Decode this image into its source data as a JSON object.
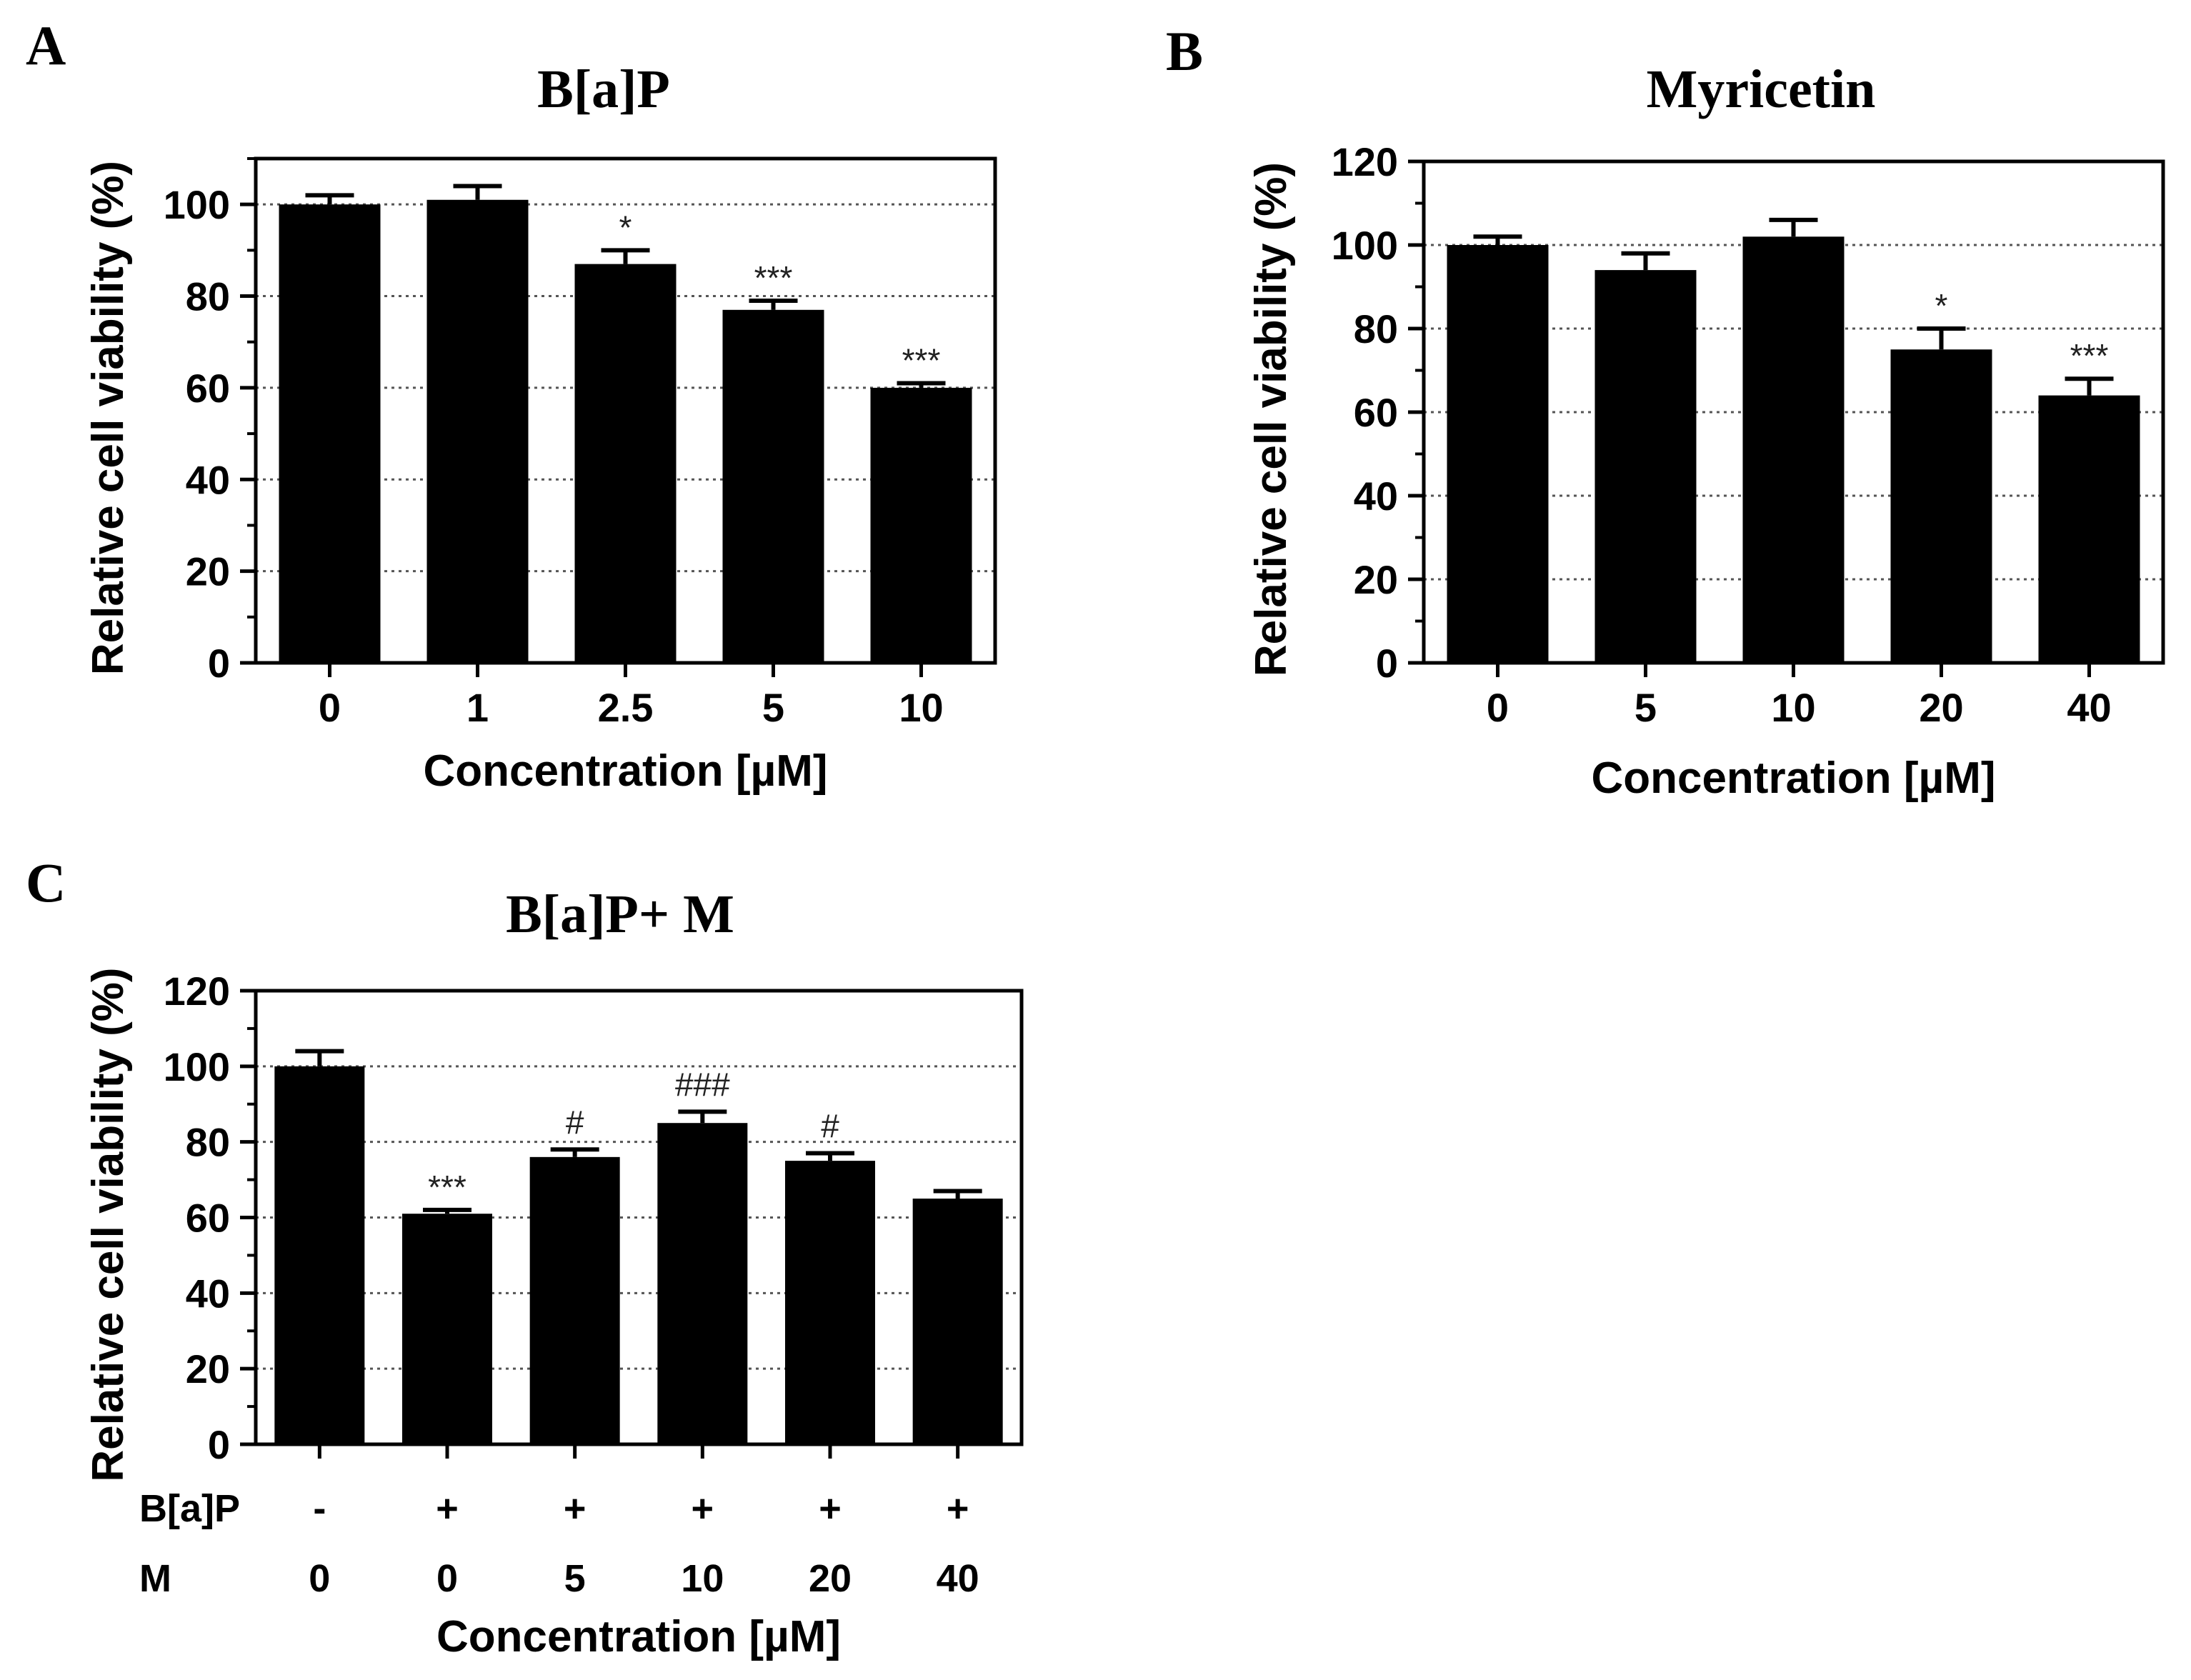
{
  "panels": {
    "A": {
      "letter": "A"
    },
    "B": {
      "letter": "B"
    },
    "C": {
      "letter": "C"
    }
  },
  "chart_data": [
    {
      "id": "A",
      "type": "bar",
      "title": "B[a]P",
      "xlabel": "Concentration [µM]",
      "ylabel": "Relative cell viability (%)",
      "ylim": [
        0,
        110
      ],
      "yticks": [
        0,
        20,
        40,
        60,
        80,
        100
      ],
      "grid": true,
      "categories": [
        "0",
        "1",
        "2.5",
        "5",
        "10"
      ],
      "values": [
        100,
        101,
        87,
        77,
        60
      ],
      "errors": [
        2,
        3,
        3,
        2,
        1
      ],
      "annotations": [
        "",
        "",
        "*",
        "***",
        "***"
      ]
    },
    {
      "id": "B",
      "type": "bar",
      "title": "Myricetin",
      "xlabel": "Concentration [µM]",
      "ylabel": "Relative cell viability (%)",
      "ylim": [
        0,
        120
      ],
      "yticks": [
        0,
        20,
        40,
        60,
        80,
        100,
        120
      ],
      "grid": true,
      "categories": [
        "0",
        "5",
        "10",
        "20",
        "40"
      ],
      "values": [
        100,
        94,
        102,
        75,
        64
      ],
      "errors": [
        2,
        4,
        4,
        5,
        4
      ],
      "annotations": [
        "",
        "",
        "",
        "*",
        "***"
      ]
    },
    {
      "id": "C",
      "type": "bar",
      "title": "B[a]P+ M",
      "xlabel": "Concentration [µM]",
      "ylabel": "Relative cell viability (%)",
      "ylim": [
        0,
        120
      ],
      "yticks": [
        0,
        20,
        40,
        60,
        80,
        100,
        120
      ],
      "grid": true,
      "categories": [
        "B[a]P - / M 0",
        "B[a]P + / M 0",
        "B[a]P + / M 5",
        "B[a]P + / M 10",
        "B[a]P + / M 20",
        "B[a]P + / M 40"
      ],
      "values": [
        100,
        61,
        76,
        85,
        75,
        65
      ],
      "errors": [
        4,
        1,
        2,
        3,
        2,
        2
      ],
      "annotations": [
        "",
        "***",
        "#",
        "###",
        "#",
        ""
      ],
      "rows": [
        {
          "label": "B[a]P",
          "values": [
            "-",
            "+",
            "+",
            "+",
            "+",
            "+"
          ]
        },
        {
          "label": "M",
          "values": [
            "0",
            "0",
            "5",
            "10",
            "20",
            "40"
          ]
        }
      ]
    }
  ]
}
